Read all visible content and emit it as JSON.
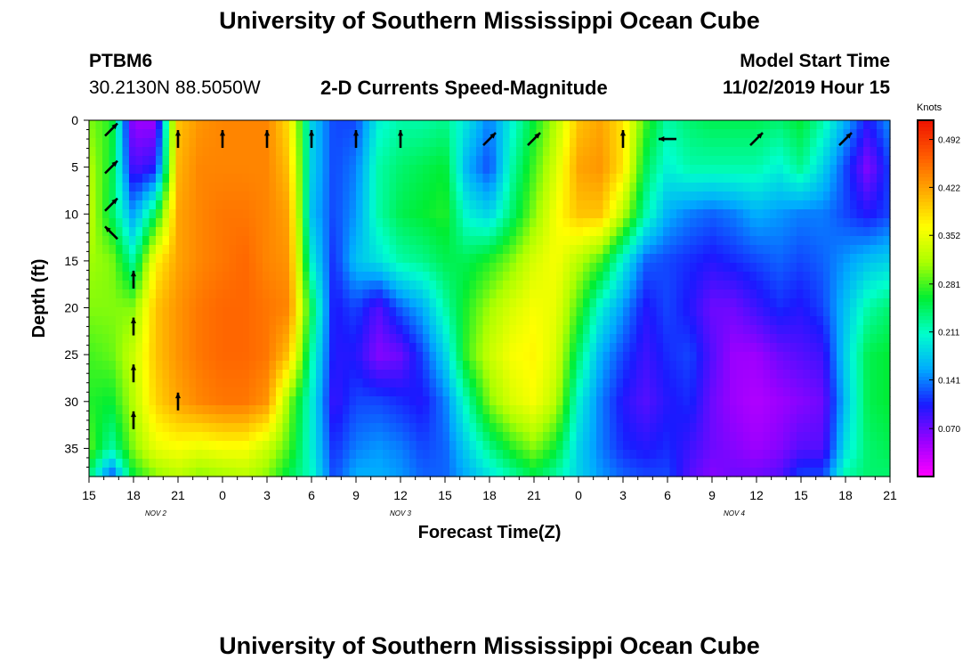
{
  "header": {
    "title": "University of Southern Mississippi Ocean Cube",
    "station_id": "PTBM6",
    "station_coords": "30.2130N 88.5050W",
    "plot_title": "2-D Currents Speed-Magnitude",
    "model_label": "Model Start Time",
    "model_time": "11/02/2019 Hour 15"
  },
  "footer": {
    "title": "University of Southern Mississippi Ocean Cube"
  },
  "chart_data": {
    "type": "heatmap",
    "title": "2-D Currents Speed-Magnitude",
    "xlabel": "Forecast Time(Z)",
    "ylabel": "Depth (ft)",
    "x_ticks": [
      "15",
      "18",
      "21",
      "0",
      "3",
      "6",
      "9",
      "12",
      "15",
      "18",
      "21",
      "0",
      "3",
      "6",
      "9",
      "12",
      "15",
      "18",
      "21"
    ],
    "date_labels": [
      {
        "label": "NOV 2",
        "after_tick": 1.5
      },
      {
        "label": "NOV 3",
        "after_tick": 7
      },
      {
        "label": "NOV 4",
        "after_tick": 14.5
      }
    ],
    "x_range_hours": [
      0,
      54
    ],
    "ylim": [
      0,
      38
    ],
    "y_inverted": true,
    "y_ticks": [
      0,
      5,
      10,
      15,
      20,
      25,
      30,
      35
    ],
    "colorbar": {
      "unit": "Knots",
      "range": [
        0,
        0.52
      ],
      "ticks": [
        "0.492",
        "0.422",
        "0.352",
        "0.281",
        "0.211",
        "0.141",
        "0.070"
      ],
      "tick_values": [
        0.492,
        0.422,
        0.352,
        0.281,
        0.211,
        0.141,
        0.07
      ],
      "stops": [
        "#ff00ff",
        "#9900ff",
        "#1a1aff",
        "#00aaff",
        "#00ffcc",
        "#00ee33",
        "#aaff00",
        "#ffff00",
        "#ffaa00",
        "#ff5a00",
        "#ee1100"
      ]
    },
    "speed_profiles": [
      {
        "hour": 0,
        "speeds": [
          0.3,
          0.32,
          0.33,
          0.31,
          0.3,
          0.28,
          0.27,
          0.29,
          0.24
        ]
      },
      {
        "hour": 1.5,
        "speeds": [
          0.27,
          0.26,
          0.25,
          0.3,
          0.3,
          0.29,
          0.26,
          0.22,
          0.12
        ]
      },
      {
        "hour": 3,
        "speeds": [
          0.05,
          0.08,
          0.15,
          0.22,
          0.3,
          0.33,
          0.32,
          0.3,
          0.26
        ]
      },
      {
        "hour": 4.5,
        "speeds": [
          0.05,
          0.1,
          0.25,
          0.37,
          0.4,
          0.4,
          0.39,
          0.35,
          0.3
        ]
      },
      {
        "hour": 6,
        "speeds": [
          0.4,
          0.41,
          0.42,
          0.42,
          0.43,
          0.43,
          0.42,
          0.36,
          0.32
        ]
      },
      {
        "hour": 7.5,
        "speeds": [
          0.43,
          0.44,
          0.44,
          0.44,
          0.45,
          0.45,
          0.44,
          0.35,
          0.3
        ]
      },
      {
        "hour": 9,
        "speeds": [
          0.44,
          0.44,
          0.45,
          0.45,
          0.46,
          0.46,
          0.45,
          0.36,
          0.31
        ]
      },
      {
        "hour": 10.5,
        "speeds": [
          0.44,
          0.44,
          0.45,
          0.46,
          0.46,
          0.46,
          0.45,
          0.36,
          0.32
        ]
      },
      {
        "hour": 12,
        "speeds": [
          0.44,
          0.44,
          0.44,
          0.44,
          0.45,
          0.45,
          0.43,
          0.33,
          0.3
        ]
      },
      {
        "hour": 13.5,
        "speeds": [
          0.38,
          0.4,
          0.42,
          0.43,
          0.44,
          0.4,
          0.3,
          0.28,
          0.25
        ]
      },
      {
        "hour": 15,
        "speeds": [
          0.18,
          0.18,
          0.17,
          0.2,
          0.25,
          0.22,
          0.2,
          0.2,
          0.21
        ]
      },
      {
        "hour": 16.5,
        "speeds": [
          0.12,
          0.12,
          0.12,
          0.11,
          0.1,
          0.1,
          0.09,
          0.11,
          0.12
        ]
      },
      {
        "hour": 18,
        "speeds": [
          0.12,
          0.14,
          0.15,
          0.17,
          0.12,
          0.1,
          0.12,
          0.14,
          0.16
        ]
      },
      {
        "hour": 19.5,
        "speeds": [
          0.2,
          0.22,
          0.22,
          0.19,
          0.08,
          0.06,
          0.12,
          0.15,
          0.16
        ]
      },
      {
        "hour": 21,
        "speeds": [
          0.22,
          0.24,
          0.25,
          0.22,
          0.13,
          0.07,
          0.11,
          0.14,
          0.15
        ]
      },
      {
        "hour": 22.5,
        "speeds": [
          0.22,
          0.25,
          0.26,
          0.23,
          0.16,
          0.12,
          0.1,
          0.12,
          0.13
        ]
      },
      {
        "hour": 24,
        "speeds": [
          0.23,
          0.26,
          0.27,
          0.25,
          0.22,
          0.18,
          0.14,
          0.13,
          0.13
        ]
      },
      {
        "hour": 25.5,
        "speeds": [
          0.19,
          0.16,
          0.2,
          0.25,
          0.27,
          0.28,
          0.22,
          0.18,
          0.16
        ]
      },
      {
        "hour": 27,
        "speeds": [
          0.14,
          0.12,
          0.18,
          0.27,
          0.31,
          0.33,
          0.3,
          0.23,
          0.19
        ]
      },
      {
        "hour": 28.5,
        "speeds": [
          0.2,
          0.22,
          0.24,
          0.3,
          0.34,
          0.36,
          0.34,
          0.27,
          0.22
        ]
      },
      {
        "hour": 30,
        "speeds": [
          0.26,
          0.28,
          0.3,
          0.34,
          0.36,
          0.37,
          0.36,
          0.3,
          0.25
        ]
      },
      {
        "hour": 31.5,
        "speeds": [
          0.32,
          0.34,
          0.36,
          0.36,
          0.35,
          0.34,
          0.32,
          0.26,
          0.22
        ]
      },
      {
        "hour": 33,
        "speeds": [
          0.4,
          0.42,
          0.4,
          0.32,
          0.28,
          0.24,
          0.2,
          0.18,
          0.18
        ]
      },
      {
        "hour": 34.5,
        "speeds": [
          0.42,
          0.43,
          0.4,
          0.28,
          0.2,
          0.16,
          0.14,
          0.14,
          0.15
        ]
      },
      {
        "hour": 36,
        "speeds": [
          0.38,
          0.38,
          0.32,
          0.2,
          0.15,
          0.12,
          0.1,
          0.11,
          0.13
        ]
      },
      {
        "hour": 37.5,
        "speeds": [
          0.28,
          0.25,
          0.22,
          0.13,
          0.1,
          0.09,
          0.08,
          0.1,
          0.12
        ]
      },
      {
        "hour": 39,
        "speeds": [
          0.22,
          0.2,
          0.16,
          0.12,
          0.12,
          0.11,
          0.1,
          0.11,
          0.12
        ]
      },
      {
        "hour": 40.5,
        "speeds": [
          0.24,
          0.22,
          0.14,
          0.11,
          0.1,
          0.12,
          0.11,
          0.09,
          0.08
        ]
      },
      {
        "hour": 42,
        "speeds": [
          0.25,
          0.22,
          0.13,
          0.1,
          0.07,
          0.08,
          0.07,
          0.07,
          0.06
        ]
      },
      {
        "hour": 43.5,
        "speeds": [
          0.25,
          0.22,
          0.14,
          0.11,
          0.07,
          0.05,
          0.05,
          0.06,
          0.07
        ]
      },
      {
        "hour": 45,
        "speeds": [
          0.25,
          0.22,
          0.16,
          0.12,
          0.09,
          0.05,
          0.04,
          0.05,
          0.07
        ]
      },
      {
        "hour": 46.5,
        "speeds": [
          0.24,
          0.2,
          0.15,
          0.13,
          0.11,
          0.07,
          0.05,
          0.06,
          0.08
        ]
      },
      {
        "hour": 48,
        "speeds": [
          0.26,
          0.23,
          0.14,
          0.12,
          0.1,
          0.08,
          0.06,
          0.08,
          0.12
        ]
      },
      {
        "hour": 49.5,
        "speeds": [
          0.22,
          0.18,
          0.14,
          0.13,
          0.12,
          0.09,
          0.07,
          0.08,
          0.12
        ]
      },
      {
        "hour": 51,
        "speeds": [
          0.16,
          0.12,
          0.12,
          0.15,
          0.17,
          0.18,
          0.17,
          0.19,
          0.22
        ]
      },
      {
        "hour": 52.5,
        "speeds": [
          0.1,
          0.06,
          0.1,
          0.17,
          0.22,
          0.25,
          0.25,
          0.24,
          0.24
        ]
      },
      {
        "hour": 54,
        "speeds": [
          0.15,
          0.12,
          0.12,
          0.18,
          0.24,
          0.26,
          0.26,
          0.25,
          0.24
        ]
      }
    ],
    "profile_depths": [
      0,
      5,
      10,
      15,
      20,
      25,
      30,
      35,
      38
    ],
    "vectors": [
      {
        "hour": 1.5,
        "depth": 1,
        "dir": "NE"
      },
      {
        "hour": 1.5,
        "depth": 5,
        "dir": "NE"
      },
      {
        "hour": 1.5,
        "depth": 9,
        "dir": "NE"
      },
      {
        "hour": 1.5,
        "depth": 12,
        "dir": "NW"
      },
      {
        "hour": 3,
        "depth": 17,
        "dir": "N"
      },
      {
        "hour": 3,
        "depth": 22,
        "dir": "N"
      },
      {
        "hour": 3,
        "depth": 27,
        "dir": "N"
      },
      {
        "hour": 3,
        "depth": 32,
        "dir": "N"
      },
      {
        "hour": 6,
        "depth": 2,
        "dir": "N"
      },
      {
        "hour": 6,
        "depth": 30,
        "dir": "N"
      },
      {
        "hour": 9,
        "depth": 2,
        "dir": "N"
      },
      {
        "hour": 12,
        "depth": 2,
        "dir": "N"
      },
      {
        "hour": 15,
        "depth": 2,
        "dir": "N"
      },
      {
        "hour": 18,
        "depth": 2,
        "dir": "N"
      },
      {
        "hour": 21,
        "depth": 2,
        "dir": "N"
      },
      {
        "hour": 27,
        "depth": 2,
        "dir": "NE"
      },
      {
        "hour": 30,
        "depth": 2,
        "dir": "NE"
      },
      {
        "hour": 36,
        "depth": 2,
        "dir": "N"
      },
      {
        "hour": 39,
        "depth": 2,
        "dir": "W"
      },
      {
        "hour": 45,
        "depth": 2,
        "dir": "NE"
      },
      {
        "hour": 51,
        "depth": 2,
        "dir": "NE"
      }
    ]
  }
}
